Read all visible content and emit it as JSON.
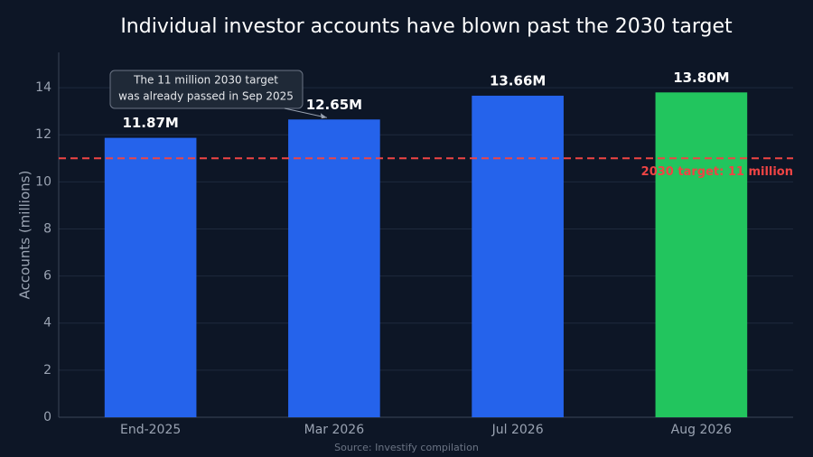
{
  "chart_data": {
    "type": "bar",
    "title": "Individual investor accounts have blown past the 2030 target",
    "ylabel": "Accounts (millions)",
    "source": "Source: Investify compilation",
    "categories": [
      "End-2025",
      "Mar 2026",
      "Jul 2026",
      "Aug 2026"
    ],
    "values": [
      11.87,
      12.65,
      13.66,
      13.8
    ],
    "value_labels": [
      "11.87M",
      "12.65M",
      "13.66M",
      "13.80M"
    ],
    "colors": [
      "#2563eb",
      "#2563eb",
      "#2563eb",
      "#22c55e"
    ],
    "ylim": [
      0,
      15.5
    ],
    "yticks": [
      0,
      2,
      4,
      6,
      8,
      10,
      12,
      14
    ],
    "grid": true,
    "reference_line": {
      "value": 11,
      "label": "2030 target: 11 million",
      "color": "#ef4444"
    },
    "annotation": {
      "lines": [
        "The 11 million 2030 target",
        "was already passed in Sep 2025"
      ],
      "category_index": 1
    }
  }
}
